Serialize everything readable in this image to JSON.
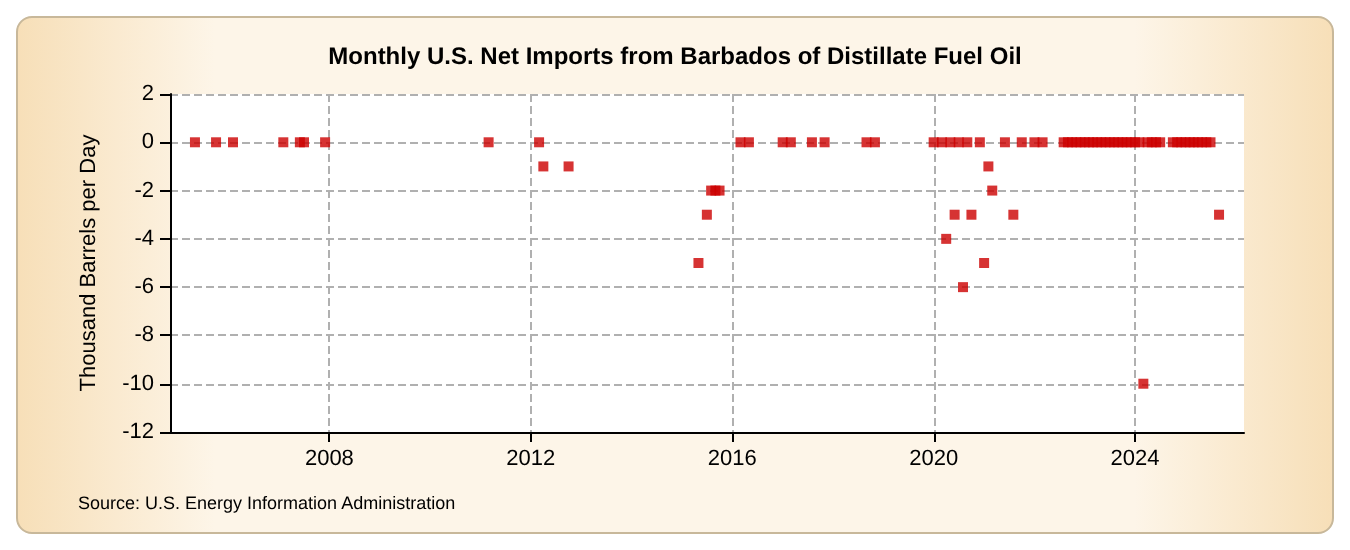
{
  "chart_data": {
    "type": "scatter",
    "title": "Monthly U.S. Net Imports from Barbados of Distillate Fuel Oil",
    "ylabel": "Thousand Barrels per Day",
    "annotations": [
      "Source: U.S. Energy Information Administration"
    ],
    "x": [
      "2005-05",
      "2005-10",
      "2006-02",
      "2007-02",
      "2007-06",
      "2007-07",
      "2007-12",
      "2011-03",
      "2012-03",
      "2012-04",
      "2012-10",
      "2015-05",
      "2015-07",
      "2015-08",
      "2015-09",
      "2015-10",
      "2016-03",
      "2016-05",
      "2017-01",
      "2017-03",
      "2017-08",
      "2017-11",
      "2018-09",
      "2018-11",
      "2020-01",
      "2020-03",
      "2020-04",
      "2020-05",
      "2020-06",
      "2020-07",
      "2020-08",
      "2020-09",
      "2020-10",
      "2020-12",
      "2021-01",
      "2021-02",
      "2021-03",
      "2021-06",
      "2021-08",
      "2021-10",
      "2022-01",
      "2022-03",
      "2022-08",
      "2022-09",
      "2022-10",
      "2022-11",
      "2022-12",
      "2023-01",
      "2023-02",
      "2023-03",
      "2023-04",
      "2023-05",
      "2023-06",
      "2023-07",
      "2023-08",
      "2023-09",
      "2023-10",
      "2023-11",
      "2023-12",
      "2024-01",
      "2024-02",
      "2024-03",
      "2024-04",
      "2024-05",
      "2024-06",
      "2024-07",
      "2024-10",
      "2024-11",
      "2024-12",
      "2025-01",
      "2025-02",
      "2025-03",
      "2025-04",
      "2025-05",
      "2025-06",
      "2025-07",
      "2025-09"
    ],
    "series": [
      {
        "color": "#cc0000",
        "values": [
          0,
          0,
          0,
          0,
          0,
          0,
          0,
          0,
          0,
          -1,
          -1,
          -5,
          -3,
          -2,
          -2,
          -2,
          0,
          0,
          0,
          0,
          0,
          0,
          0,
          0,
          0,
          0,
          -4,
          0,
          -3,
          0,
          -6,
          0,
          -3,
          0,
          -5,
          -1,
          -2,
          0,
          -3,
          0,
          0,
          0,
          0,
          0,
          0,
          0,
          0,
          0,
          0,
          0,
          0,
          0,
          0,
          0,
          0,
          0,
          0,
          0,
          0,
          0,
          0,
          -10,
          0,
          0,
          0,
          0,
          0,
          0,
          0,
          0,
          0,
          0,
          0,
          0,
          0,
          0,
          -3
        ]
      }
    ],
    "xlim": [
      "2004-11",
      "2026-03"
    ],
    "xticks": [
      "2008",
      "2012",
      "2016",
      "2020",
      "2024"
    ],
    "ylim": [
      -12,
      2
    ],
    "yticks": [
      -12,
      -10,
      -8,
      -6,
      -4,
      -2,
      0,
      2
    ],
    "grid": true,
    "marker": "square"
  }
}
